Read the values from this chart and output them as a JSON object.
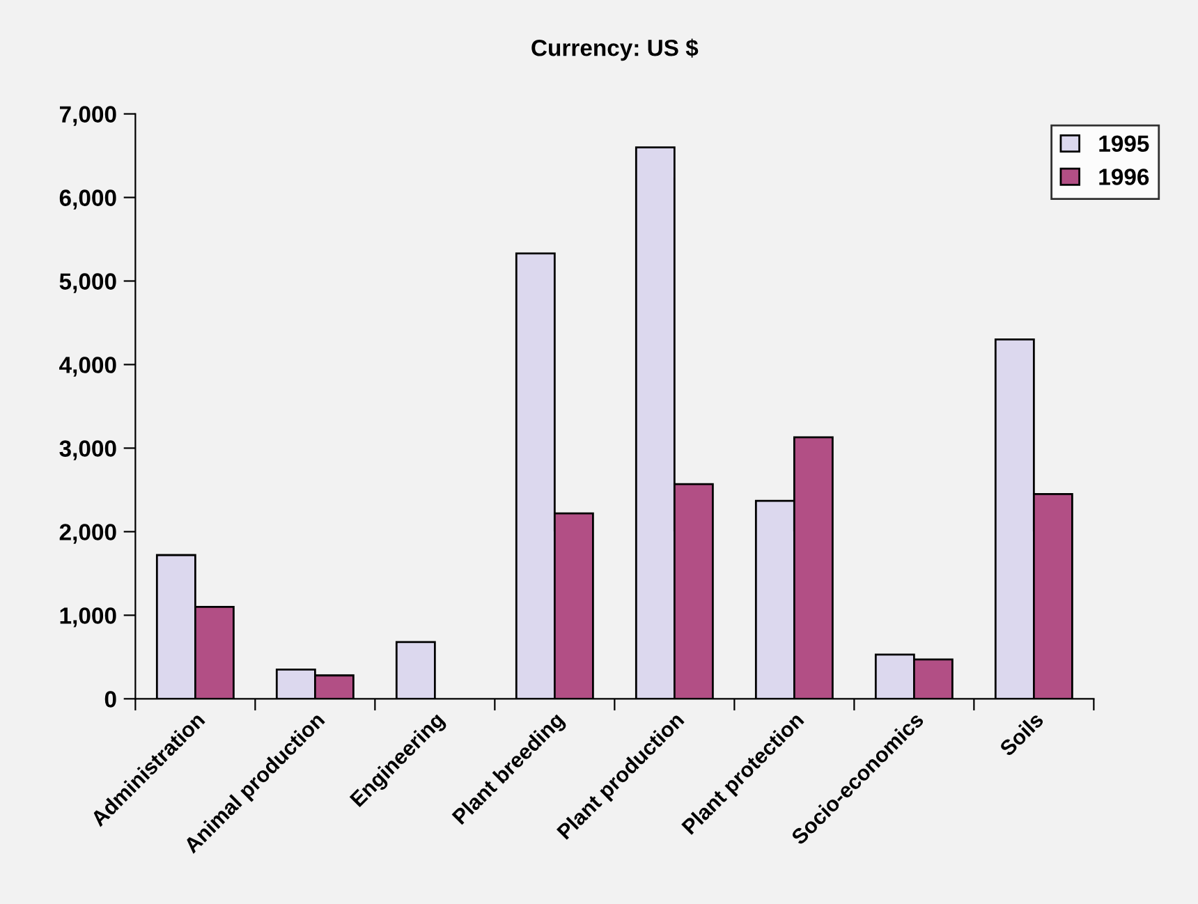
{
  "chart_data": {
    "type": "bar",
    "title": "Currency: US $",
    "categories": [
      "Administration",
      "Animal production",
      "Engineering",
      "Plant breeding",
      "Plant production",
      "Plant protection",
      "Socio-economics",
      "Soils"
    ],
    "series": [
      {
        "name": "1995",
        "color": "#dcd8ee",
        "values": [
          1720,
          350,
          680,
          5330,
          6600,
          2370,
          530,
          4300
        ]
      },
      {
        "name": "1996",
        "color": "#b24f85",
        "values": [
          1100,
          280,
          null,
          2220,
          2570,
          3130,
          470,
          2450
        ]
      }
    ],
    "ylim": [
      0,
      7000
    ],
    "yticks": [
      {
        "value": 0,
        "label": "0"
      },
      {
        "value": 1000,
        "label": "1,000"
      },
      {
        "value": 2000,
        "label": "2,000"
      },
      {
        "value": 3000,
        "label": "3,000"
      },
      {
        "value": 4000,
        "label": "4,000"
      },
      {
        "value": 5000,
        "label": "5,000"
      },
      {
        "value": 6000,
        "label": "6,000"
      },
      {
        "value": 7000,
        "label": "7,000"
      }
    ],
    "grid": false,
    "legend": "top right"
  }
}
